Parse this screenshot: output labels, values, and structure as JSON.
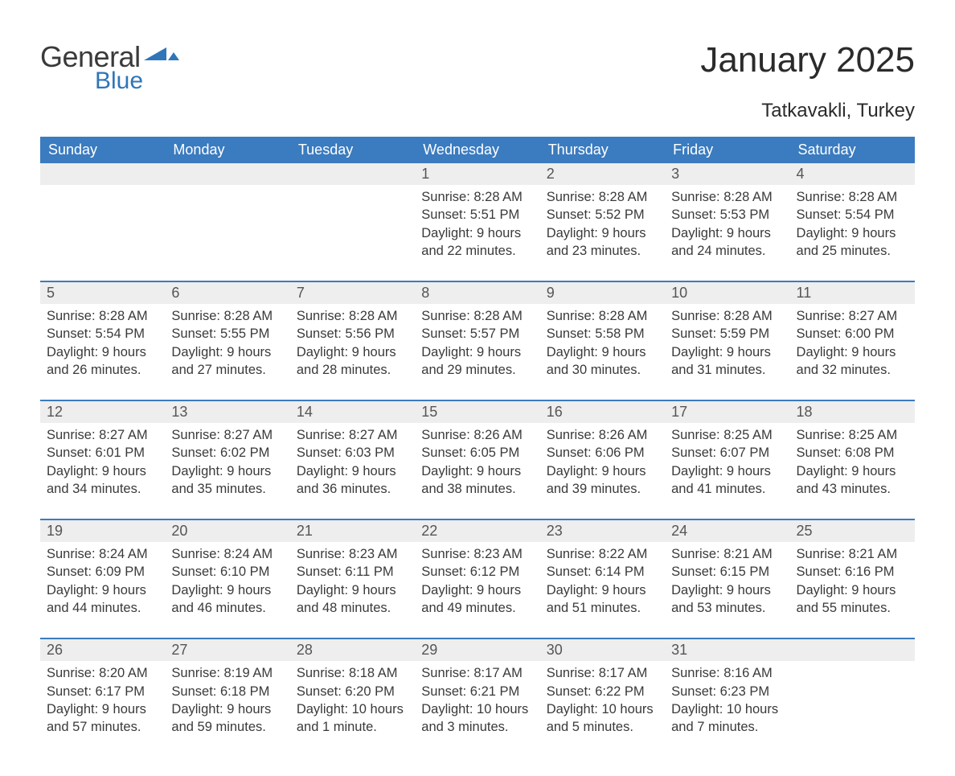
{
  "brand": {
    "word1": "General",
    "word2": "Blue",
    "color_primary": "#2f76b8"
  },
  "title": "January 2025",
  "location": "Tatkavakli, Turkey",
  "colors": {
    "header_bg": "#3b7bbf",
    "header_text": "#ffffff",
    "daynum_bg": "#eeeeee",
    "rule": "#3b7bbf",
    "text": "#3a3a3a",
    "page_bg": "#ffffff"
  },
  "layout": {
    "columns": 7,
    "weeks": 5,
    "first_day_column_index": 3
  },
  "weekdays": [
    "Sunday",
    "Monday",
    "Tuesday",
    "Wednesday",
    "Thursday",
    "Friday",
    "Saturday"
  ],
  "labels": {
    "sunrise": "Sunrise",
    "sunset": "Sunset",
    "daylight": "Daylight"
  },
  "days": [
    {
      "n": 1,
      "sunrise": "8:28 AM",
      "sunset": "5:51 PM",
      "daylight": "9 hours and 22 minutes."
    },
    {
      "n": 2,
      "sunrise": "8:28 AM",
      "sunset": "5:52 PM",
      "daylight": "9 hours and 23 minutes."
    },
    {
      "n": 3,
      "sunrise": "8:28 AM",
      "sunset": "5:53 PM",
      "daylight": "9 hours and 24 minutes."
    },
    {
      "n": 4,
      "sunrise": "8:28 AM",
      "sunset": "5:54 PM",
      "daylight": "9 hours and 25 minutes."
    },
    {
      "n": 5,
      "sunrise": "8:28 AM",
      "sunset": "5:54 PM",
      "daylight": "9 hours and 26 minutes."
    },
    {
      "n": 6,
      "sunrise": "8:28 AM",
      "sunset": "5:55 PM",
      "daylight": "9 hours and 27 minutes."
    },
    {
      "n": 7,
      "sunrise": "8:28 AM",
      "sunset": "5:56 PM",
      "daylight": "9 hours and 28 minutes."
    },
    {
      "n": 8,
      "sunrise": "8:28 AM",
      "sunset": "5:57 PM",
      "daylight": "9 hours and 29 minutes."
    },
    {
      "n": 9,
      "sunrise": "8:28 AM",
      "sunset": "5:58 PM",
      "daylight": "9 hours and 30 minutes."
    },
    {
      "n": 10,
      "sunrise": "8:28 AM",
      "sunset": "5:59 PM",
      "daylight": "9 hours and 31 minutes."
    },
    {
      "n": 11,
      "sunrise": "8:27 AM",
      "sunset": "6:00 PM",
      "daylight": "9 hours and 32 minutes."
    },
    {
      "n": 12,
      "sunrise": "8:27 AM",
      "sunset": "6:01 PM",
      "daylight": "9 hours and 34 minutes."
    },
    {
      "n": 13,
      "sunrise": "8:27 AM",
      "sunset": "6:02 PM",
      "daylight": "9 hours and 35 minutes."
    },
    {
      "n": 14,
      "sunrise": "8:27 AM",
      "sunset": "6:03 PM",
      "daylight": "9 hours and 36 minutes."
    },
    {
      "n": 15,
      "sunrise": "8:26 AM",
      "sunset": "6:05 PM",
      "daylight": "9 hours and 38 minutes."
    },
    {
      "n": 16,
      "sunrise": "8:26 AM",
      "sunset": "6:06 PM",
      "daylight": "9 hours and 39 minutes."
    },
    {
      "n": 17,
      "sunrise": "8:25 AM",
      "sunset": "6:07 PM",
      "daylight": "9 hours and 41 minutes."
    },
    {
      "n": 18,
      "sunrise": "8:25 AM",
      "sunset": "6:08 PM",
      "daylight": "9 hours and 43 minutes."
    },
    {
      "n": 19,
      "sunrise": "8:24 AM",
      "sunset": "6:09 PM",
      "daylight": "9 hours and 44 minutes."
    },
    {
      "n": 20,
      "sunrise": "8:24 AM",
      "sunset": "6:10 PM",
      "daylight": "9 hours and 46 minutes."
    },
    {
      "n": 21,
      "sunrise": "8:23 AM",
      "sunset": "6:11 PM",
      "daylight": "9 hours and 48 minutes."
    },
    {
      "n": 22,
      "sunrise": "8:23 AM",
      "sunset": "6:12 PM",
      "daylight": "9 hours and 49 minutes."
    },
    {
      "n": 23,
      "sunrise": "8:22 AM",
      "sunset": "6:14 PM",
      "daylight": "9 hours and 51 minutes."
    },
    {
      "n": 24,
      "sunrise": "8:21 AM",
      "sunset": "6:15 PM",
      "daylight": "9 hours and 53 minutes."
    },
    {
      "n": 25,
      "sunrise": "8:21 AM",
      "sunset": "6:16 PM",
      "daylight": "9 hours and 55 minutes."
    },
    {
      "n": 26,
      "sunrise": "8:20 AM",
      "sunset": "6:17 PM",
      "daylight": "9 hours and 57 minutes."
    },
    {
      "n": 27,
      "sunrise": "8:19 AM",
      "sunset": "6:18 PM",
      "daylight": "9 hours and 59 minutes."
    },
    {
      "n": 28,
      "sunrise": "8:18 AM",
      "sunset": "6:20 PM",
      "daylight": "10 hours and 1 minute."
    },
    {
      "n": 29,
      "sunrise": "8:17 AM",
      "sunset": "6:21 PM",
      "daylight": "10 hours and 3 minutes."
    },
    {
      "n": 30,
      "sunrise": "8:17 AM",
      "sunset": "6:22 PM",
      "daylight": "10 hours and 5 minutes."
    },
    {
      "n": 31,
      "sunrise": "8:16 AM",
      "sunset": "6:23 PM",
      "daylight": "10 hours and 7 minutes."
    }
  ]
}
